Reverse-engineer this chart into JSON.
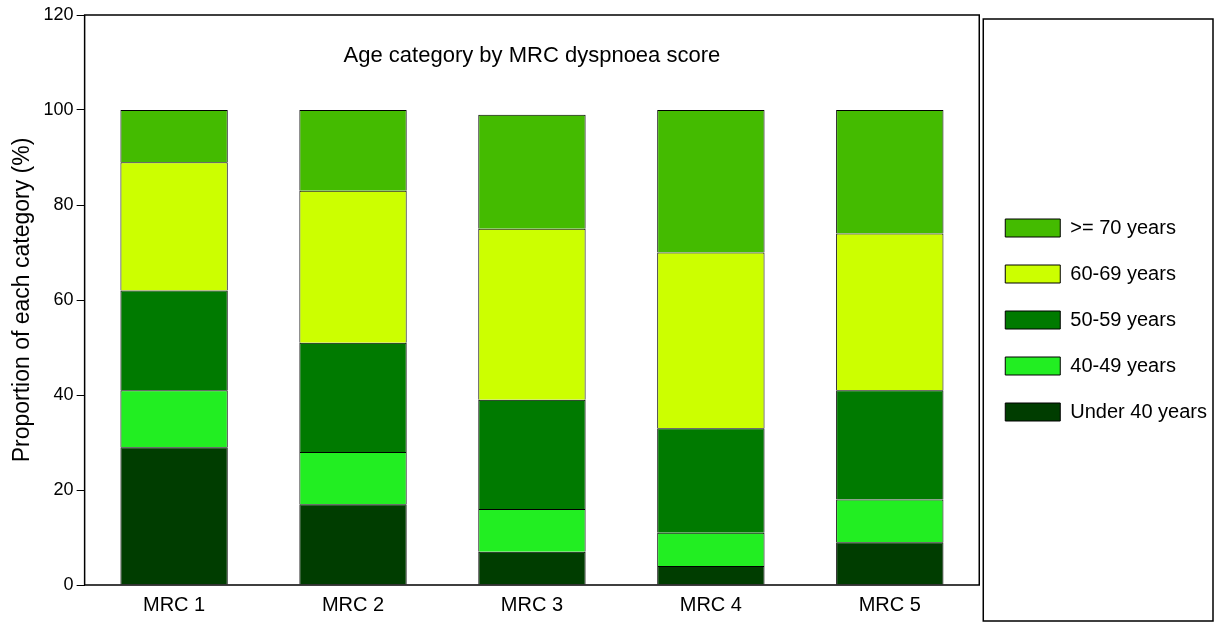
{
  "chart_data": {
    "type": "bar",
    "title": "Age category by MRC dyspnoea score",
    "ylabel": "Proportion of each category (%)",
    "categories": [
      "MRC 1",
      "MRC 2",
      "MRC 3",
      "MRC 4",
      "MRC 5"
    ],
    "stacked": true,
    "ylim": [
      0,
      120
    ],
    "yticks": [
      0,
      20,
      40,
      60,
      80,
      100,
      120
    ],
    "grid": false,
    "legend": "right",
    "series": [
      {
        "name": "Under 40 years",
        "color": "#003d00",
        "values": [
          29,
          17,
          7,
          4,
          9
        ]
      },
      {
        "name": "40-49 years",
        "color": "#22ee22",
        "values": [
          12,
          11,
          9,
          7,
          9
        ]
      },
      {
        "name": "50-59 years",
        "color": "#007a00",
        "values": [
          21,
          23,
          23,
          22,
          23
        ]
      },
      {
        "name": "60-69 years",
        "color": "#ccff00",
        "values": [
          27,
          32,
          36,
          37,
          33
        ]
      },
      {
        "name": ">= 70 years",
        "color": "#44bb00",
        "values": [
          11,
          17,
          24,
          30,
          26
        ]
      }
    ]
  }
}
